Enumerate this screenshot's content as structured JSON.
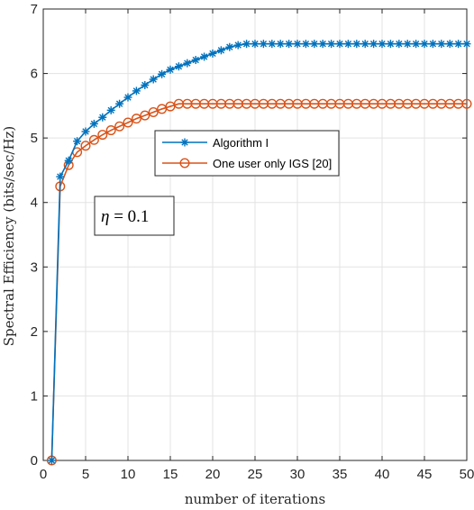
{
  "chart_data": {
    "type": "line",
    "title": "",
    "xlabel": "number of iterations",
    "ylabel": "Spectral Efficiency (bits/sec/Hz)",
    "xlim": [
      0,
      50
    ],
    "ylim": [
      0,
      7
    ],
    "xticks": [
      0,
      5,
      10,
      15,
      20,
      25,
      30,
      35,
      40,
      45,
      50
    ],
    "yticks": [
      0,
      1,
      2,
      3,
      4,
      5,
      6,
      7
    ],
    "grid": true,
    "legend_position": "center",
    "annotation": {
      "symbol": "η",
      "text": " = 0.1",
      "position": "left-middle"
    },
    "x": [
      1,
      2,
      3,
      4,
      5,
      6,
      7,
      8,
      9,
      10,
      11,
      12,
      13,
      14,
      15,
      16,
      17,
      18,
      19,
      20,
      21,
      22,
      23,
      24,
      25,
      26,
      27,
      28,
      29,
      30,
      31,
      32,
      33,
      34,
      35,
      36,
      37,
      38,
      39,
      40,
      41,
      42,
      43,
      44,
      45,
      46,
      47,
      48,
      49,
      50
    ],
    "series": [
      {
        "name": "Algorithm I",
        "color": "#0072BD",
        "marker": "asterisk",
        "values": [
          0,
          4.4,
          4.65,
          4.95,
          5.1,
          5.22,
          5.32,
          5.43,
          5.53,
          5.63,
          5.73,
          5.82,
          5.91,
          5.99,
          6.06,
          6.11,
          6.16,
          6.21,
          6.26,
          6.31,
          6.36,
          6.41,
          6.44,
          6.46,
          6.46,
          6.46,
          6.46,
          6.46,
          6.46,
          6.46,
          6.46,
          6.46,
          6.46,
          6.46,
          6.46,
          6.46,
          6.46,
          6.46,
          6.46,
          6.46,
          6.46,
          6.46,
          6.46,
          6.46,
          6.46,
          6.46,
          6.46,
          6.46,
          6.46,
          6.46
        ]
      },
      {
        "name": "One user only IGS [20]",
        "color": "#D95319",
        "marker": "circle",
        "values": [
          0,
          4.25,
          4.58,
          4.78,
          4.88,
          4.97,
          5.05,
          5.12,
          5.18,
          5.24,
          5.3,
          5.35,
          5.4,
          5.45,
          5.49,
          5.53,
          5.53,
          5.53,
          5.53,
          5.53,
          5.53,
          5.53,
          5.53,
          5.53,
          5.53,
          5.53,
          5.53,
          5.53,
          5.53,
          5.53,
          5.53,
          5.53,
          5.53,
          5.53,
          5.53,
          5.53,
          5.53,
          5.53,
          5.53,
          5.53,
          5.53,
          5.53,
          5.53,
          5.53,
          5.53,
          5.53,
          5.53,
          5.53,
          5.53,
          5.53
        ]
      }
    ]
  }
}
